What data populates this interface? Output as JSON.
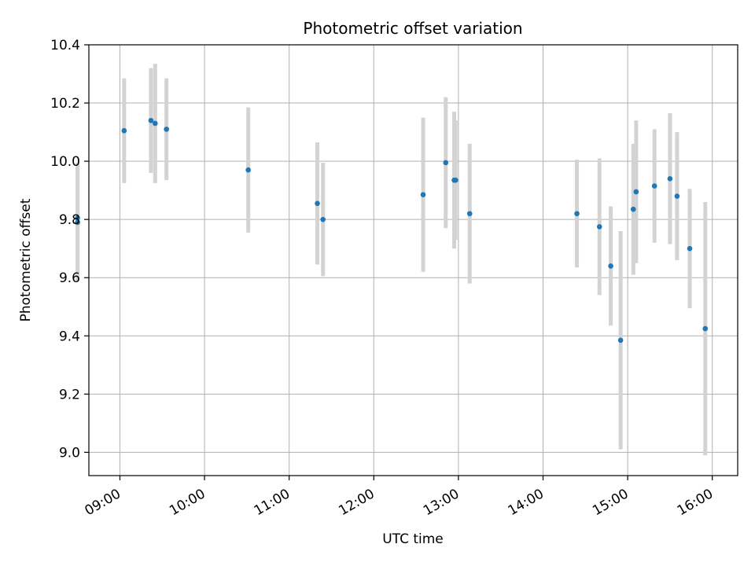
{
  "chart_data": {
    "type": "scatter",
    "title": "Photometric offset variation",
    "xlabel": "UTC time",
    "ylabel": "Photometric offset",
    "xlim": [
      "08:38",
      "16:18"
    ],
    "ylim": [
      8.92,
      10.4
    ],
    "x_ticks": [
      "09:00",
      "10:00",
      "11:00",
      "12:00",
      "13:00",
      "14:00",
      "15:00",
      "16:00"
    ],
    "y_ticks": [
      "9.0",
      "9.2",
      "9.4",
      "9.6",
      "9.8",
      "10.0",
      "10.2",
      "10.4"
    ],
    "grid": true,
    "legend": "none",
    "colors": {
      "points": "#1f77b4",
      "error_bars": "#d3d3d3",
      "grid": "#b0b0b0"
    },
    "points": [
      {
        "time": "08:30",
        "y": 9.805,
        "yerr": 0.19
      },
      {
        "time": "08:30",
        "y": 9.79,
        "yerr": 0.2
      },
      {
        "time": "09:03",
        "y": 10.105,
        "yerr": 0.18
      },
      {
        "time": "09:22",
        "y": 10.14,
        "yerr": 0.18
      },
      {
        "time": "09:25",
        "y": 10.13,
        "yerr": 0.205
      },
      {
        "time": "09:33",
        "y": 10.11,
        "yerr": 0.175
      },
      {
        "time": "10:31",
        "y": 9.97,
        "yerr": 0.215
      },
      {
        "time": "11:20",
        "y": 9.855,
        "yerr": 0.21
      },
      {
        "time": "11:24",
        "y": 9.8,
        "yerr": 0.195
      },
      {
        "time": "12:35",
        "y": 9.885,
        "yerr": 0.265
      },
      {
        "time": "12:51",
        "y": 9.995,
        "yerr": 0.225
      },
      {
        "time": "12:57",
        "y": 9.935,
        "yerr": 0.235
      },
      {
        "time": "12:58",
        "y": 9.935,
        "yerr": 0.205
      },
      {
        "time": "13:08",
        "y": 9.82,
        "yerr": 0.24
      },
      {
        "time": "14:24",
        "y": 9.82,
        "yerr": 0.185
      },
      {
        "time": "14:40",
        "y": 9.775,
        "yerr": 0.235
      },
      {
        "time": "14:48",
        "y": 9.64,
        "yerr": 0.205
      },
      {
        "time": "14:55",
        "y": 9.385,
        "yerr": 0.375
      },
      {
        "time": "15:04",
        "y": 9.835,
        "yerr": 0.225
      },
      {
        "time": "15:06",
        "y": 9.895,
        "yerr": 0.245
      },
      {
        "time": "15:19",
        "y": 9.915,
        "yerr": 0.195
      },
      {
        "time": "15:30",
        "y": 9.94,
        "yerr": 0.225
      },
      {
        "time": "15:35",
        "y": 9.88,
        "yerr": 0.22
      },
      {
        "time": "15:44",
        "y": 9.7,
        "yerr": 0.205
      },
      {
        "time": "15:55",
        "y": 9.425,
        "yerr": 0.435
      }
    ]
  }
}
